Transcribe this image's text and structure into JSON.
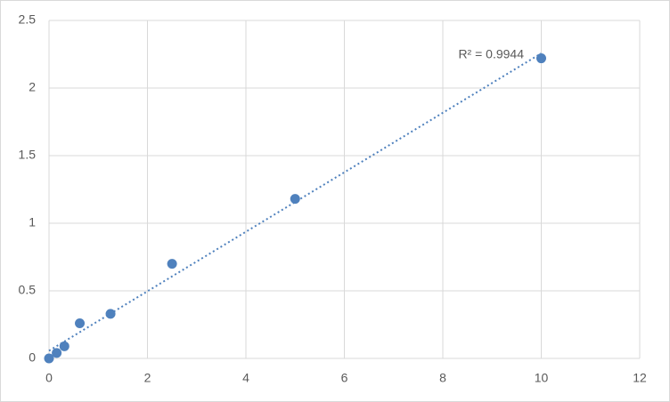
{
  "chart_data": {
    "type": "scatter",
    "x": [
      0,
      0.156,
      0.3125,
      0.625,
      1.25,
      2.5,
      5,
      10
    ],
    "series": [
      {
        "color": "#4f81bd",
        "values": [
          0,
          0.04,
          0.09,
          0.26,
          0.33,
          0.7,
          1.18,
          2.22
        ]
      }
    ],
    "xlim": [
      0,
      12
    ],
    "xticks": [
      0,
      2,
      4,
      6,
      8,
      10,
      12
    ],
    "ylim": [
      0,
      2.5
    ],
    "yticks": [
      0,
      0.5,
      1,
      1.5,
      2,
      2.5
    ],
    "grid": true,
    "trendline": "linear",
    "annotation": "R² = 0.9944"
  }
}
